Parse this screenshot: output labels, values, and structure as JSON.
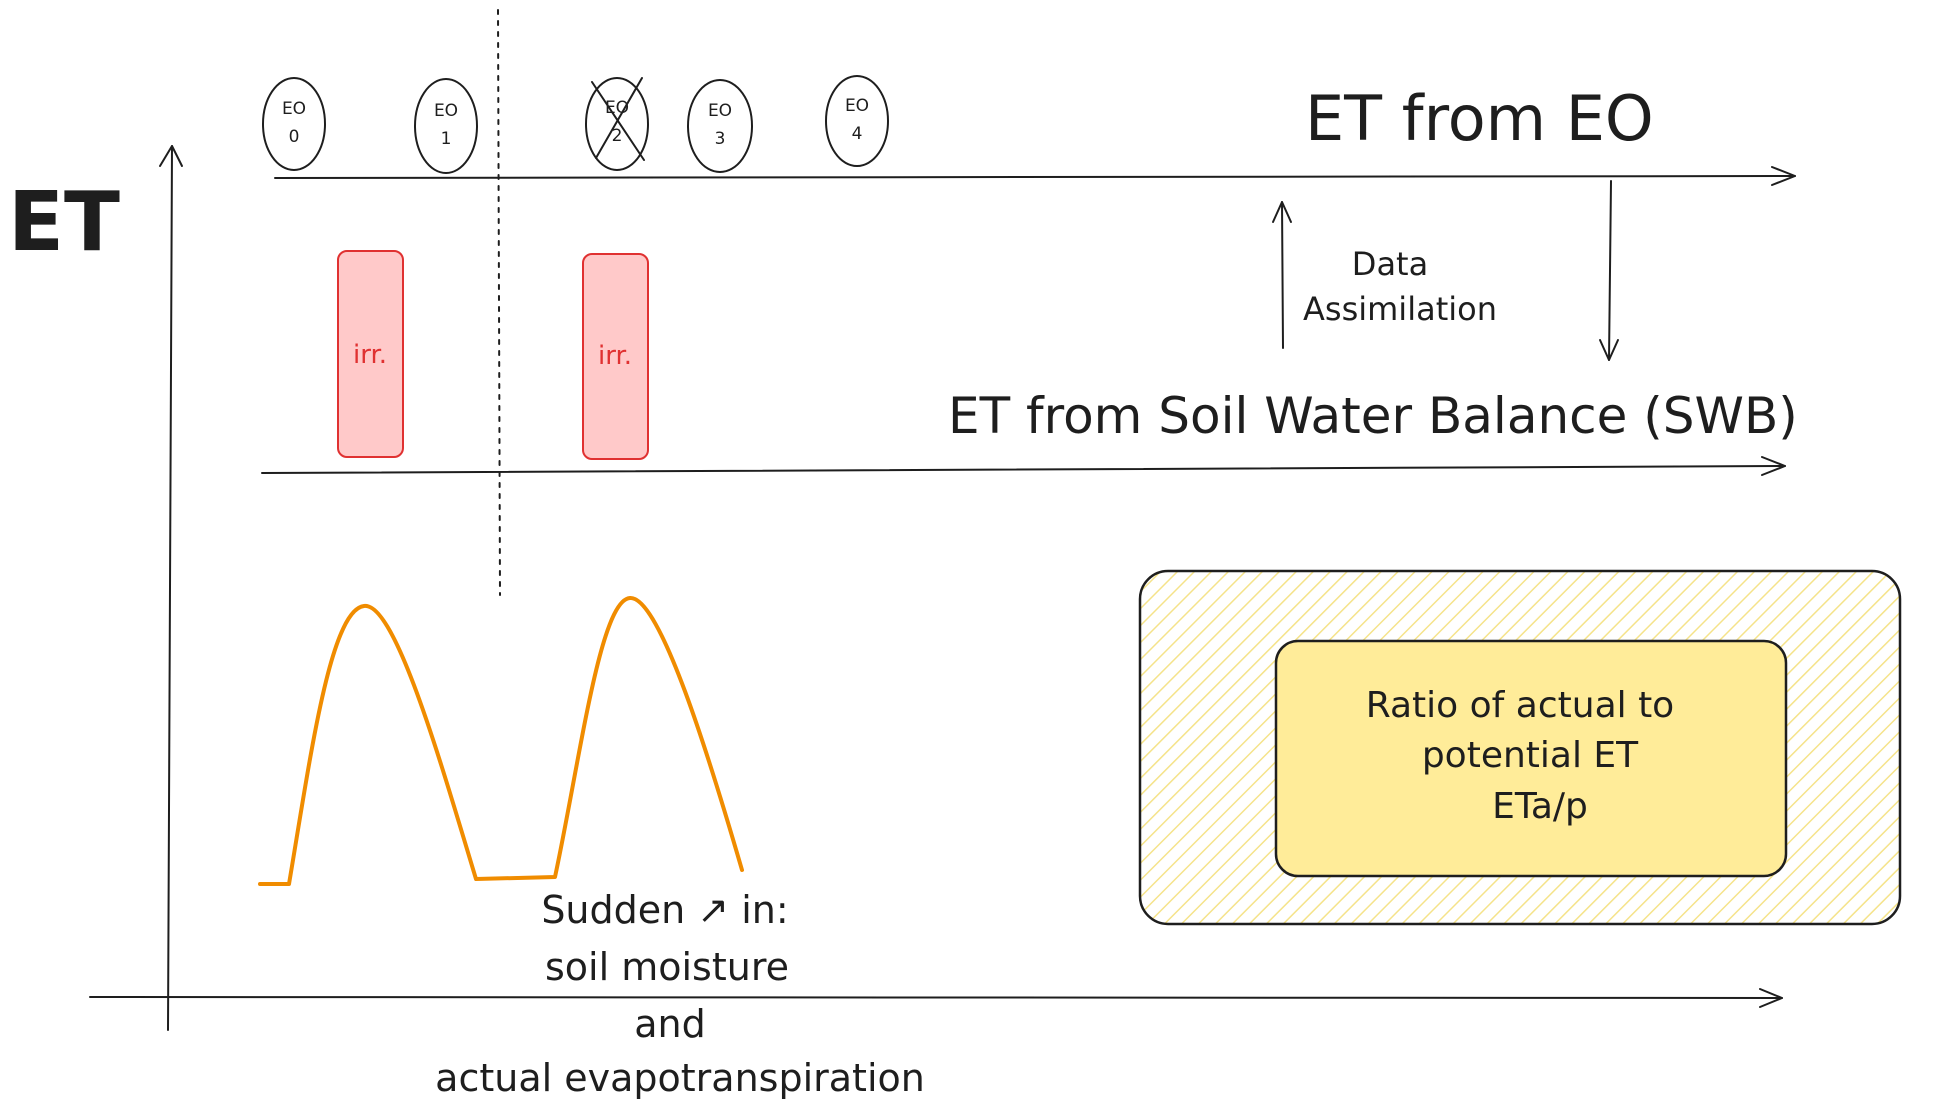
{
  "axis": {
    "y_label": "ET"
  },
  "timelines": {
    "eo": {
      "label": "ET from EO"
    },
    "swb": {
      "label": "ET from Soil Water Balance (SWB)"
    }
  },
  "observations": [
    {
      "id": "EO",
      "index": "0",
      "rejected": false
    },
    {
      "id": "EO",
      "index": "1",
      "rejected": false
    },
    {
      "id": "EO",
      "index": "2",
      "rejected": true
    },
    {
      "id": "EO",
      "index": "3",
      "rejected": false
    },
    {
      "id": "EO",
      "index": "4",
      "rejected": false
    }
  ],
  "irrigations": [
    {
      "label": "irr."
    },
    {
      "label": "irr."
    }
  ],
  "assimilation": {
    "line1": "Data",
    "line2": "Assimilation"
  },
  "sudden_note": {
    "line1": "Sudden ↗ in:",
    "line2": "soil moisture",
    "line3": "and",
    "line4": "actual evapotranspiration"
  },
  "ratio_box": {
    "line1": "Ratio of actual to",
    "line2": "potential ET",
    "line3": "ETa/p"
  },
  "colors": {
    "ink": "#1e1e1e",
    "irrigation_fill": "#ffc9c9",
    "irrigation_stroke": "#e03131",
    "et_curve": "#f08c00",
    "outer_box_hatch": "#ffec99",
    "inner_box_fill": "#ffec99"
  }
}
